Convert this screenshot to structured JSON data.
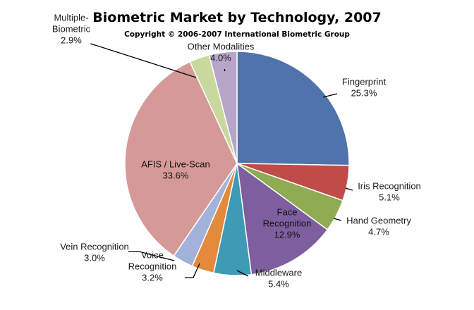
{
  "chart_data": {
    "type": "pie",
    "title": "Biometric Market by Technology, 2007",
    "subtitle": "Copyright © 2006-2007 International Biometric Group",
    "slices": [
      {
        "label_lines": [
          "Fingerprint"
        ],
        "value": 25.3,
        "value_text": "25.3%",
        "color": "#4f73ab"
      },
      {
        "label_lines": [
          "Iris Recognition"
        ],
        "value": 5.1,
        "value_text": "5.1%",
        "color": "#bf4c49"
      },
      {
        "label_lines": [
          "Hand Geometry"
        ],
        "value": 4.7,
        "value_text": "4.7%",
        "color": "#8fac52"
      },
      {
        "label_lines": [
          "Face",
          "Recognition"
        ],
        "value": 12.9,
        "value_text": "12.9%",
        "color": "#7d5f9f"
      },
      {
        "label_lines": [
          "Middleware"
        ],
        "value": 5.4,
        "value_text": "5.4%",
        "color": "#3e9ab5"
      },
      {
        "label_lines": [
          "Voice",
          "Recognition"
        ],
        "value": 3.2,
        "value_text": "3.2%",
        "color": "#e38a3c"
      },
      {
        "label_lines": [
          "Vein Recognition"
        ],
        "value": 3.0,
        "value_text": "3.0%",
        "color": "#a2b2d9"
      },
      {
        "label_lines": [
          "AFIS / Live-Scan"
        ],
        "value": 33.6,
        "value_text": "33.6%",
        "color": "#d59a98"
      },
      {
        "label_lines": [
          "Multiple-",
          "Biometric"
        ],
        "value": 2.9,
        "value_text": "2.9%",
        "color": "#c9d99e"
      },
      {
        "label_lines": [
          "Other Modalities"
        ],
        "value": 4.0,
        "value_text": "4.0%",
        "color": "#b8a5ca"
      }
    ]
  }
}
